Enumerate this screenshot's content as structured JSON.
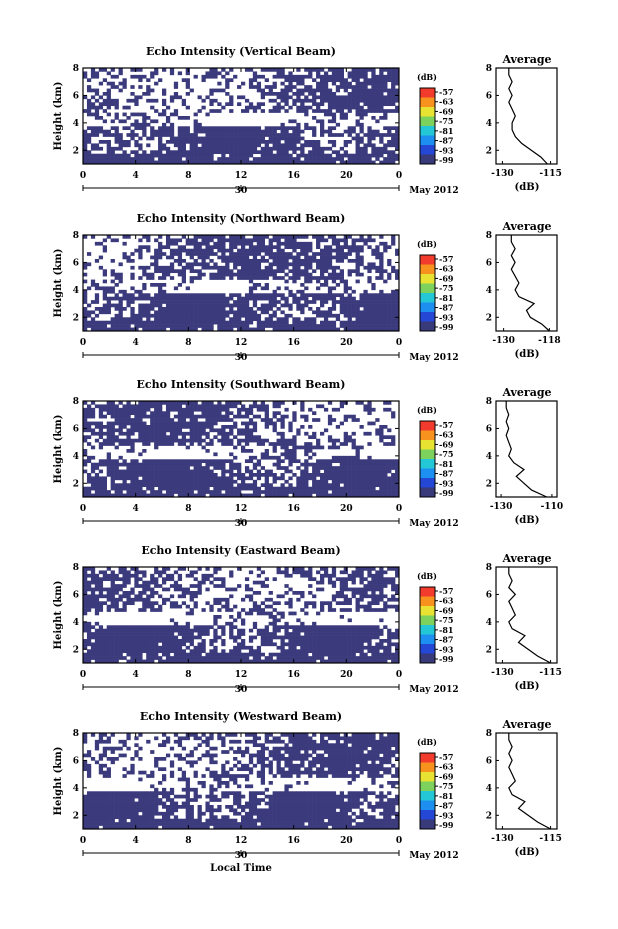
{
  "figure": {
    "date_label": "May 2012",
    "day_label": "30",
    "xlabel": "Local Time",
    "ylabel": "Height (km)",
    "avg_title": "Average",
    "unit_label": "(dB)"
  },
  "colorbar": {
    "ticks": [
      "-57",
      "-63",
      "-69",
      "-75",
      "-81",
      "-87",
      "-93",
      "-99"
    ],
    "colors": [
      "#f23b2c",
      "#f7921e",
      "#e8e332",
      "#7cd25c",
      "#23c7d5",
      "#1d8ff0",
      "#2447d6",
      "#393a7a"
    ]
  },
  "chart_data": [
    {
      "type": "heatmap",
      "title": "Echo Intensity (Vertical Beam)",
      "xlabel": "",
      "ylabel": "Height (km)",
      "xlim": [
        0,
        24
      ],
      "ylim": [
        1,
        8
      ],
      "xticks": [
        "0",
        "4",
        "8",
        "12",
        "16",
        "20",
        "0"
      ],
      "yticks": [
        "2",
        "4",
        "6",
        "8"
      ],
      "colorbar_unit": "(dB)",
      "colorbar_ticks": [
        "-57",
        "-63",
        "-69",
        "-75",
        "-81",
        "-87",
        "-93",
        "-99"
      ],
      "profile": {
        "title": "Average",
        "xlabel": "(dB)",
        "xticks": [
          "-130",
          "-115"
        ],
        "yticks": [
          "2",
          "4",
          "6",
          "8"
        ],
        "x": [
          -116,
          -118,
          -121,
          -124,
          -126,
          -127,
          -127,
          -126,
          -127,
          -128,
          -127,
          -128,
          -127,
          -128,
          -128
        ],
        "height": [
          1,
          1.5,
          2,
          2.5,
          3,
          3.5,
          4,
          4.5,
          5,
          5.5,
          6,
          6.5,
          7,
          7.5,
          8
        ]
      }
    },
    {
      "type": "heatmap",
      "title": "Echo Intensity (Northward Beam)",
      "xlabel": "",
      "ylabel": "Height (km)",
      "xlim": [
        0,
        24
      ],
      "ylim": [
        1,
        8
      ],
      "xticks": [
        "0",
        "4",
        "8",
        "12",
        "16",
        "20",
        "0"
      ],
      "yticks": [
        "2",
        "4",
        "6",
        "8"
      ],
      "colorbar_unit": "(dB)",
      "colorbar_ticks": [
        "-57",
        "-63",
        "-69",
        "-75",
        "-81",
        "-87",
        "-93",
        "-99"
      ],
      "profile": {
        "title": "Average",
        "xlabel": "(dB)",
        "xticks": [
          "-130",
          "-118"
        ],
        "yticks": [
          "2",
          "4",
          "6",
          "8"
        ],
        "x": [
          -118,
          -120,
          -123,
          -124,
          -122,
          -126,
          -127,
          -126,
          -127,
          -128,
          -127,
          -128,
          -127,
          -128,
          -128
        ],
        "height": [
          1,
          1.5,
          2,
          2.5,
          3,
          3.5,
          4,
          4.5,
          5,
          5.5,
          6,
          6.5,
          7,
          7.5,
          8
        ]
      }
    },
    {
      "type": "heatmap",
      "title": "Echo Intensity (Southward Beam)",
      "xlabel": "",
      "ylabel": "Height (km)",
      "xlim": [
        0,
        24
      ],
      "ylim": [
        1,
        8
      ],
      "xticks": [
        "0",
        "4",
        "8",
        "12",
        "16",
        "20",
        "0"
      ],
      "yticks": [
        "2",
        "4",
        "6",
        "8"
      ],
      "colorbar_unit": "(dB)",
      "colorbar_ticks": [
        "-57",
        "-63",
        "-69",
        "-75",
        "-81",
        "-87",
        "-93",
        "-99"
      ],
      "profile": {
        "title": "Average",
        "xlabel": "(dB)",
        "xticks": [
          "-130",
          "-110"
        ],
        "yticks": [
          "2",
          "4",
          "6",
          "8"
        ],
        "x": [
          -112,
          -118,
          -121,
          -124,
          -121,
          -125,
          -127,
          -126,
          -127,
          -128,
          -127,
          -128,
          -127,
          -128,
          -128
        ],
        "height": [
          1,
          1.5,
          2,
          2.5,
          3,
          3.5,
          4,
          4.5,
          5,
          5.5,
          6,
          6.5,
          7,
          7.5,
          8
        ]
      }
    },
    {
      "type": "heatmap",
      "title": "Echo Intensity (Eastward Beam)",
      "xlabel": "",
      "ylabel": "Height (km)",
      "xlim": [
        0,
        24
      ],
      "ylim": [
        1,
        8
      ],
      "xticks": [
        "0",
        "4",
        "8",
        "12",
        "16",
        "20",
        "0"
      ],
      "yticks": [
        "2",
        "4",
        "6",
        "8"
      ],
      "colorbar_unit": "(dB)",
      "colorbar_ticks": [
        "-57",
        "-63",
        "-69",
        "-75",
        "-81",
        "-87",
        "-93",
        "-99"
      ],
      "profile": {
        "title": "Average",
        "xlabel": "(dB)",
        "xticks": [
          "-130",
          "-115"
        ],
        "yticks": [
          "2",
          "4",
          "6",
          "8"
        ],
        "x": [
          -115,
          -119,
          -122,
          -125,
          -123,
          -127,
          -128,
          -126,
          -127,
          -128,
          -126,
          -128,
          -127,
          -128,
          -128
        ],
        "height": [
          1,
          1.5,
          2,
          2.5,
          3,
          3.5,
          4,
          4.5,
          5,
          5.5,
          6,
          6.5,
          7,
          7.5,
          8
        ]
      }
    },
    {
      "type": "heatmap",
      "title": "Echo Intensity (Westward Beam)",
      "xlabel": "Local Time",
      "ylabel": "Height (km)",
      "xlim": [
        0,
        24
      ],
      "ylim": [
        1,
        8
      ],
      "xticks": [
        "0",
        "4",
        "8",
        "12",
        "16",
        "20",
        "0"
      ],
      "yticks": [
        "2",
        "4",
        "6",
        "8"
      ],
      "colorbar_unit": "(dB)",
      "colorbar_ticks": [
        "-57",
        "-63",
        "-69",
        "-75",
        "-81",
        "-87",
        "-93",
        "-99"
      ],
      "profile": {
        "title": "Average",
        "xlabel": "(dB)",
        "xticks": [
          "-130",
          "-115"
        ],
        "yticks": [
          "2",
          "4",
          "6",
          "8"
        ],
        "x": [
          -115,
          -119,
          -122,
          -125,
          -123,
          -127,
          -128,
          -126,
          -127,
          -128,
          -127,
          -128,
          -127,
          -128,
          -128
        ],
        "height": [
          1,
          1.5,
          2,
          2.5,
          3,
          3.5,
          4,
          4.5,
          5,
          5.5,
          6,
          6.5,
          7,
          7.5,
          8
        ]
      }
    }
  ]
}
